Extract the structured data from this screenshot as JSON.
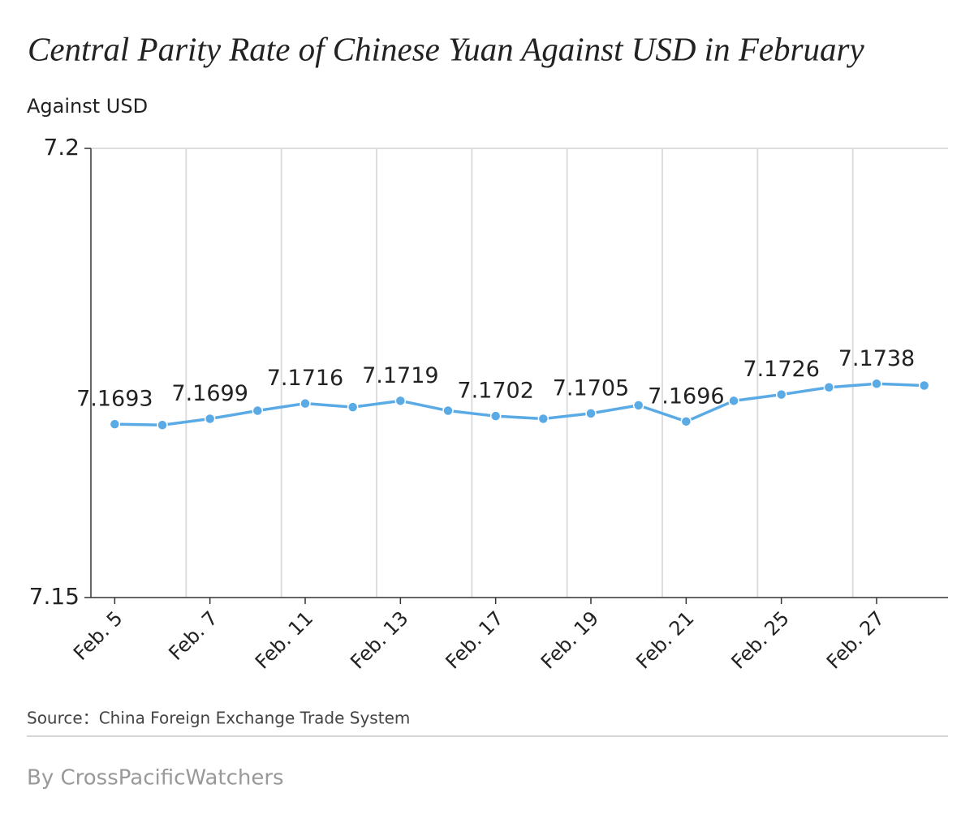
{
  "chart_data": {
    "type": "line",
    "title": "Central Parity Rate of Chinese Yuan Against USD in February",
    "y_label": "Against USD",
    "categories": [
      "Feb. 5",
      null,
      "Feb. 7",
      null,
      "Feb. 11",
      null,
      "Feb. 13",
      null,
      "Feb. 17",
      null,
      "Feb. 19",
      null,
      "Feb. 21",
      null,
      "Feb. 25",
      null,
      "Feb. 27",
      null
    ],
    "series": [
      {
        "name": "Against USD",
        "color": "#5aaae6",
        "values": [
          7.1693,
          7.1692,
          7.1699,
          7.1708,
          7.1716,
          7.1712,
          7.1719,
          7.1708,
          7.1702,
          7.1699,
          7.1705,
          7.1714,
          7.1696,
          7.1719,
          7.1726,
          7.1734,
          7.1738,
          7.1736
        ]
      }
    ],
    "ylim": [
      7.15,
      7.2
    ],
    "yticks": [
      7.15,
      7.2
    ],
    "grid": true,
    "source": "Source：China Foreign Exchange Trade System",
    "byline": "By CrossPacificWatchers"
  }
}
